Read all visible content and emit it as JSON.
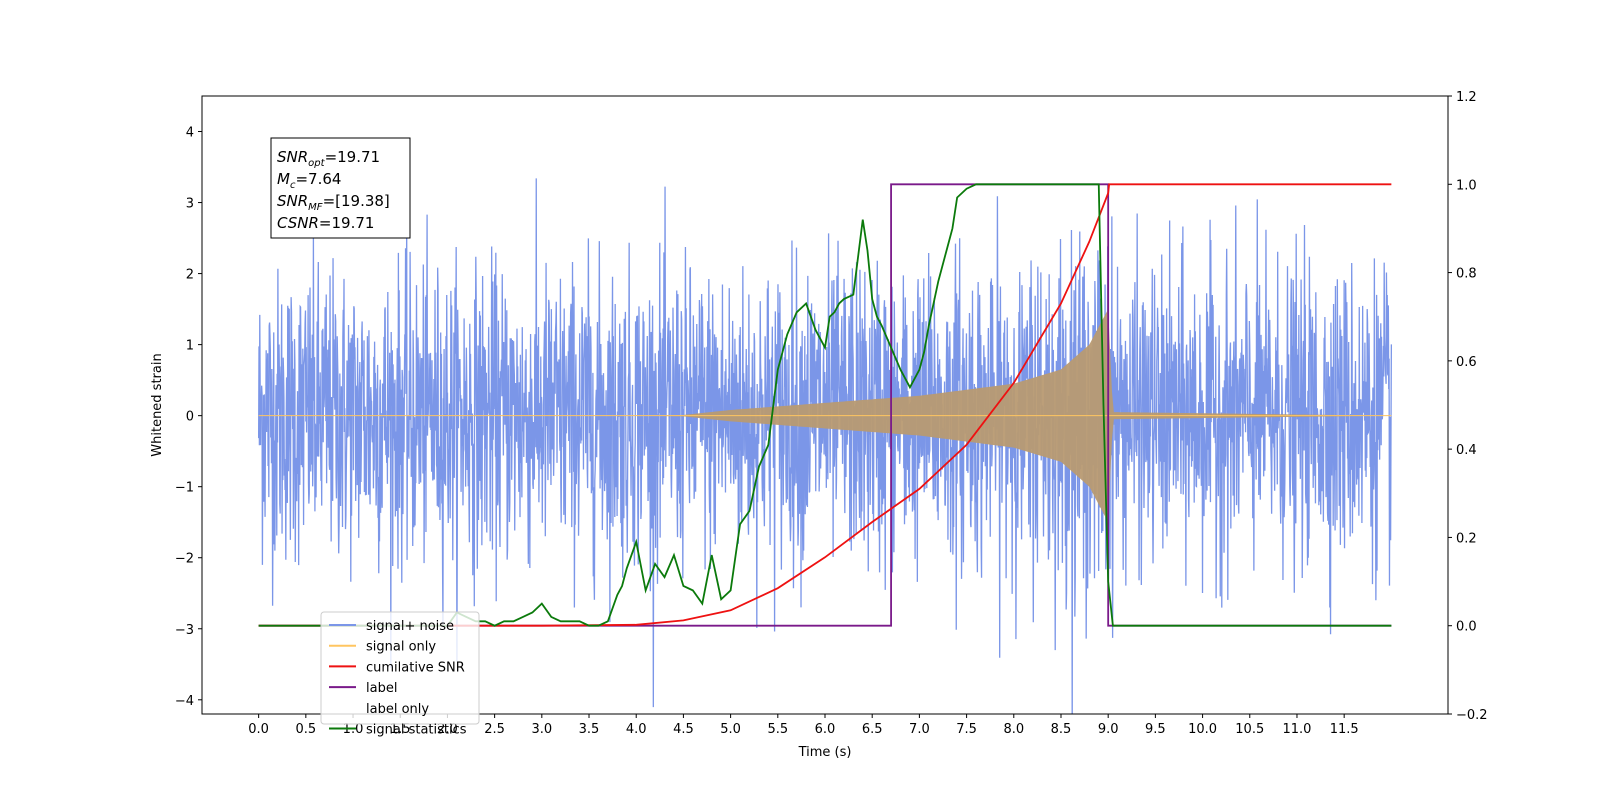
{
  "chart_data": {
    "type": "line",
    "title": "",
    "xlabel": "Time (s)",
    "ylabel": "Whitened strain",
    "xlim": [
      -0.6,
      12.6
    ],
    "ylim": [
      -4.2,
      4.5
    ],
    "y2lim": [
      -0.2,
      1.2
    ],
    "grid": false,
    "legend_position": "lower-left",
    "x_ticks": [
      "0.0",
      "0.5",
      "1.0",
      "1.5",
      "2.0",
      "2.5",
      "3.0",
      "3.5",
      "4.0",
      "4.5",
      "5.0",
      "5.5",
      "6.0",
      "6.5",
      "7.0",
      "7.5",
      "8.0",
      "8.5",
      "9.0",
      "9.5",
      "10.0",
      "10.5",
      "11.0",
      "11.5"
    ],
    "y_ticks": [
      "−4",
      "−3",
      "−2",
      "−1",
      "0",
      "1",
      "2",
      "3",
      "4"
    ],
    "y2_ticks": [
      "−0.2",
      "0.0",
      "0.2",
      "0.4",
      "0.6",
      "0.8",
      "1.0",
      "1.2"
    ],
    "annotation": {
      "lines": [
        {
          "main": "SNR",
          "sub": "opt",
          "rest": "=19.71"
        },
        {
          "main": "M",
          "sub": "c",
          "rest": "=7.64"
        },
        {
          "main": "SNR",
          "sub": "MF",
          "rest": "=[19.38]"
        },
        {
          "main": "CSNR",
          "sub": "",
          "rest": "=19.71"
        }
      ]
    },
    "series": [
      {
        "name": "signal+ noise",
        "axis": "left",
        "color": "#7b96e8",
        "x_range": [
          0.0,
          12.0
        ],
        "amplitude_typical": 1.2,
        "amplitude_max": 4.1,
        "samples": 3000
      },
      {
        "name": "signal only",
        "axis": "left",
        "color": "#ffc560",
        "envelope_x": [
          0.0,
          4.0,
          4.5,
          5.0,
          6.0,
          7.0,
          8.0,
          8.5,
          8.8,
          9.0,
          9.05,
          12.0
        ],
        "envelope_y": [
          0.0,
          0.0,
          0.01,
          0.08,
          0.18,
          0.28,
          0.45,
          0.65,
          1.0,
          1.5,
          0.05,
          0.0
        ]
      },
      {
        "name": "cumilative SNR",
        "axis": "right",
        "color": "#ee1111",
        "x": [
          0.0,
          3.0,
          4.0,
          4.5,
          5.0,
          5.5,
          6.0,
          6.5,
          7.0,
          7.5,
          8.0,
          8.5,
          8.8,
          9.0,
          9.01,
          12.0
        ],
        "y": [
          0.0,
          0.0,
          0.002,
          0.012,
          0.035,
          0.085,
          0.155,
          0.235,
          0.31,
          0.41,
          0.55,
          0.73,
          0.87,
          0.98,
          1.0,
          1.0
        ]
      },
      {
        "name": "label",
        "axis": "right",
        "color": "#7a1a8a",
        "x": [
          0.0,
          6.7,
          6.7,
          9.0,
          9.0,
          12.0
        ],
        "y": [
          0.0,
          0.0,
          1.0,
          1.0,
          0.0,
          0.0
        ]
      },
      {
        "name": "label only",
        "axis": "right",
        "color": "#ffffff",
        "x": [],
        "y": []
      },
      {
        "name": "signal statistics",
        "axis": "right",
        "color": "#0b7a0b",
        "x": [
          0.0,
          2.0,
          2.1,
          2.2,
          2.3,
          2.4,
          2.5,
          2.6,
          2.7,
          2.8,
          2.9,
          3.0,
          3.1,
          3.2,
          3.3,
          3.4,
          3.5,
          3.6,
          3.7,
          3.8,
          3.85,
          3.9,
          4.0,
          4.1,
          4.2,
          4.3,
          4.4,
          4.5,
          4.6,
          4.7,
          4.8,
          4.9,
          5.0,
          5.1,
          5.2,
          5.3,
          5.4,
          5.5,
          5.6,
          5.7,
          5.8,
          5.9,
          6.0,
          6.05,
          6.1,
          6.15,
          6.2,
          6.3,
          6.4,
          6.45,
          6.5,
          6.55,
          6.6,
          6.7,
          6.8,
          6.9,
          7.0,
          7.05,
          7.1,
          7.2,
          7.3,
          7.35,
          7.4,
          7.5,
          7.6,
          7.7,
          8.0,
          8.9,
          8.95,
          9.0,
          9.05,
          9.1,
          12.0
        ],
        "y": [
          0.0,
          0.0,
          0.03,
          0.02,
          0.01,
          0.01,
          0.0,
          0.01,
          0.01,
          0.02,
          0.03,
          0.05,
          0.02,
          0.01,
          0.01,
          0.01,
          0.0,
          0.0,
          0.01,
          0.07,
          0.09,
          0.13,
          0.19,
          0.08,
          0.14,
          0.11,
          0.16,
          0.09,
          0.08,
          0.05,
          0.16,
          0.06,
          0.08,
          0.23,
          0.26,
          0.36,
          0.41,
          0.58,
          0.66,
          0.71,
          0.73,
          0.67,
          0.63,
          0.7,
          0.71,
          0.73,
          0.74,
          0.75,
          0.92,
          0.85,
          0.74,
          0.7,
          0.68,
          0.63,
          0.58,
          0.54,
          0.58,
          0.62,
          0.68,
          0.78,
          0.86,
          0.9,
          0.97,
          0.99,
          1.0,
          1.0,
          1.0,
          1.0,
          0.5,
          0.1,
          0.0,
          0.0,
          0.0
        ]
      }
    ]
  }
}
